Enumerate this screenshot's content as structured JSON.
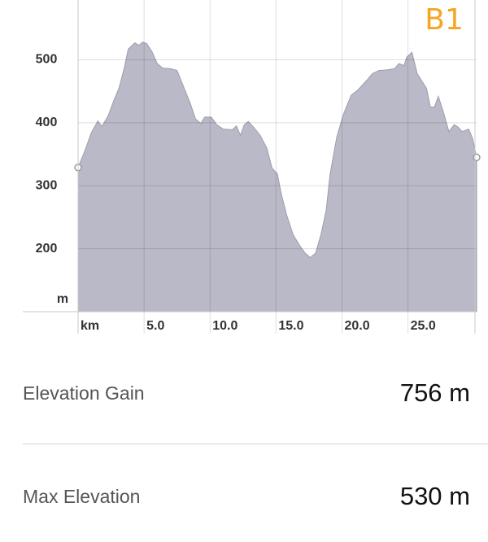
{
  "chart_data": {
    "type": "area",
    "annotation": "B1",
    "x_unit": "km",
    "y_unit": "m",
    "x": [
      0,
      0.56,
      1.0,
      1.5,
      1.8,
      2.3,
      2.7,
      3.1,
      3.5,
      3.8,
      4.3,
      4.6,
      4.9,
      5.2,
      5.6,
      6.0,
      6.4,
      7.0,
      7.5,
      8.0,
      8.5,
      8.9,
      9.3,
      9.6,
      10.1,
      10.5,
      11.0,
      11.7,
      12.0,
      12.3,
      12.6,
      12.9,
      13.3,
      13.8,
      14.3,
      14.7,
      15.1,
      15.4,
      15.8,
      16.3,
      16.8,
      17.2,
      17.6,
      18.0,
      18.4,
      18.8,
      19.1,
      19.6,
      20.1,
      20.7,
      21.2,
      21.9,
      22.3,
      22.8,
      23.4,
      24.0,
      24.3,
      24.7,
      24.9,
      25.3,
      25.7,
      26.0,
      26.4,
      26.7,
      27.0,
      27.3,
      27.7,
      28.1,
      28.5,
      28.8,
      29.1,
      29.6,
      29.9,
      30.2
    ],
    "series": [
      {
        "color": "#b9b9c7",
        "values": [
          329,
          358,
          384,
          403,
          394,
          412,
          435,
          455,
          487,
          517,
          527,
          523,
          528,
          526,
          513,
          494,
          487,
          486,
          483,
          457,
          431,
          406,
          399,
          409,
          409,
          397,
          390,
          389,
          395,
          380,
          397,
          402,
          393,
          380,
          360,
          328,
          319,
          287,
          254,
          222,
          205,
          193,
          186,
          193,
          222,
          261,
          319,
          377,
          413,
          444,
          452,
          468,
          478,
          483,
          484,
          486,
          494,
          491,
          504,
          512,
          478,
          468,
          455,
          425,
          425,
          442,
          416,
          386,
          397,
          393,
          386,
          390,
          375,
          345
        ]
      }
    ],
    "xlim": [
      0,
      30.2
    ],
    "ylim": [
      100,
      595
    ],
    "xticks": [
      {
        "value": 5,
        "label": "5.0"
      },
      {
        "value": 10,
        "label": "10.0"
      },
      {
        "value": 15,
        "label": "15.0"
      },
      {
        "value": 20,
        "label": "20.0"
      },
      {
        "value": 25,
        "label": "25.0"
      }
    ],
    "yticks": [
      200,
      300,
      400,
      500
    ],
    "grid": true
  },
  "stats": [
    {
      "label": "Elevation Gain",
      "value": "756 m"
    },
    {
      "label": "Max Elevation",
      "value": "530 m"
    }
  ]
}
